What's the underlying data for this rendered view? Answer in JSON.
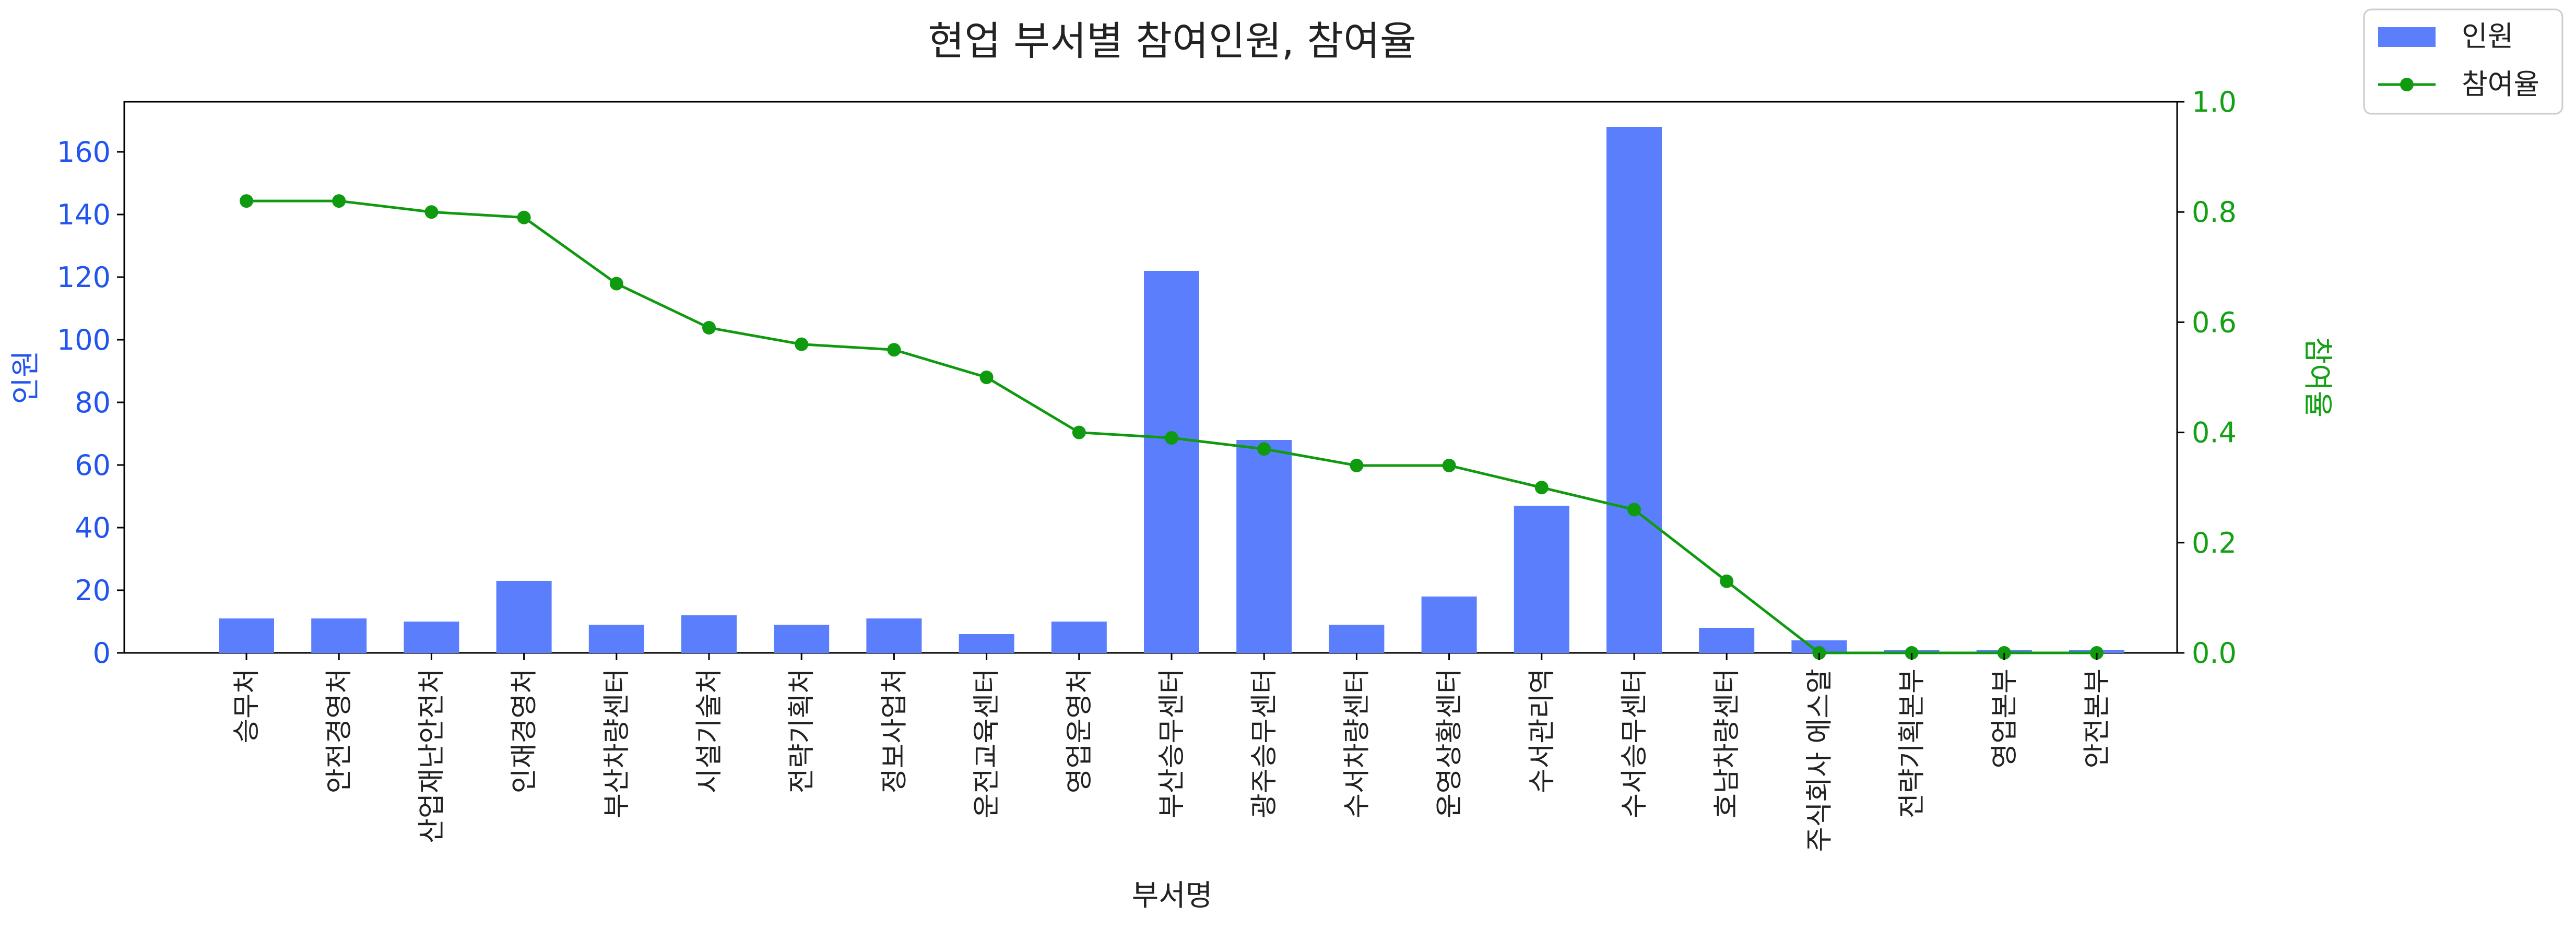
{
  "chart_data": {
    "type": "bar",
    "title": "현업 부서별 참여인원, 참여율",
    "xlabel": "부서명",
    "ylabel": "인원",
    "y2label": "참여율",
    "ylim": [
      0,
      176
    ],
    "y2lim": [
      0,
      1.0
    ],
    "yticks": [
      "0",
      "20",
      "40",
      "60",
      "80",
      "100",
      "120",
      "140",
      "160"
    ],
    "y2ticks": [
      "0.0",
      "0.2",
      "0.4",
      "0.6",
      "0.8",
      "1.0"
    ],
    "categories": [
      "승무처",
      "안전경영처",
      "산업재난안전처",
      "인재경영처",
      "부산차량센터",
      "시설기술처",
      "전략기획처",
      "정보사업처",
      "운전교육센터",
      "영업운영처",
      "부산승무센터",
      "광주승무센터",
      "수서차량센터",
      "운영상황센터",
      "수서관리역",
      "수서승무센터",
      "호남차량센터",
      "주식회사 에스알",
      "전략기획본부",
      "영업본부",
      "안전본부"
    ],
    "series": [
      {
        "name": "인원",
        "type": "bar",
        "axis": "left",
        "color": "#5b7ffc",
        "values": [
          11,
          11,
          10,
          23,
          9,
          12,
          9,
          11,
          6,
          10,
          122,
          68,
          9,
          18,
          47,
          168,
          8,
          4,
          1,
          1,
          1
        ]
      },
      {
        "name": "참여율",
        "type": "line",
        "axis": "right",
        "color": "#0f9a0f",
        "values": [
          0.82,
          0.82,
          0.8,
          0.79,
          0.67,
          0.59,
          0.56,
          0.55,
          0.5,
          0.4,
          0.39,
          0.37,
          0.34,
          0.34,
          0.3,
          0.26,
          0.13,
          0.0,
          0.0,
          0.0,
          0.0
        ]
      }
    ],
    "legend": {
      "position": "top-right"
    },
    "grid": false,
    "colors": {
      "left_axis": "#2155ee",
      "right_axis": "#14a014"
    }
  }
}
